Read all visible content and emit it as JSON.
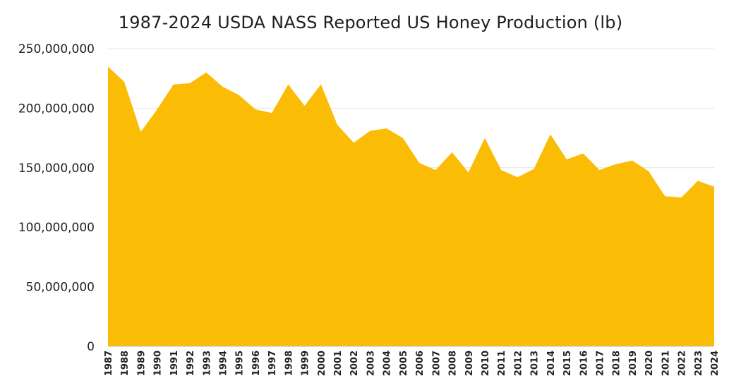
{
  "chart_data": {
    "type": "area",
    "title": "1987-2024 USDA NASS Reported US Honey Production (lb)",
    "xlabel": "",
    "ylabel": "",
    "ylim": [
      0,
      250000000
    ],
    "y_ticks": [
      0,
      50000000,
      100000000,
      150000000,
      200000000,
      250000000
    ],
    "y_tick_labels": [
      "0",
      "50,000,000",
      "100,000,000",
      "150,000,000",
      "200,000,000",
      "250,000,000"
    ],
    "grid": true,
    "legend": "none",
    "color": "#FBBC05",
    "x": [
      "1987",
      "1988",
      "1989",
      "1990",
      "1991",
      "1992",
      "1993",
      "1994",
      "1995",
      "1996",
      "1997",
      "1998",
      "1999",
      "2000",
      "2001",
      "2002",
      "2003",
      "2004",
      "2005",
      "2006",
      "2007",
      "2008",
      "2009",
      "2010",
      "2011",
      "2012",
      "2013",
      "2014",
      "2015",
      "2016",
      "2017",
      "2018",
      "2019",
      "2020",
      "2021",
      "2022",
      "2023",
      "2024"
    ],
    "series": [
      {
        "values": [
          235000000,
          222000000,
          180000000,
          199000000,
          220000000,
          221000000,
          230000000,
          218000000,
          211000000,
          199000000,
          196000000,
          220000000,
          202000000,
          220000000,
          186000000,
          171000000,
          181000000,
          183000000,
          175000000,
          154000000,
          148000000,
          163000000,
          146000000,
          175000000,
          148000000,
          142000000,
          149000000,
          178000000,
          157000000,
          162000000,
          148000000,
          153000000,
          156000000,
          147000000,
          126000000,
          125000000,
          139000000,
          134000000
        ]
      }
    ]
  }
}
